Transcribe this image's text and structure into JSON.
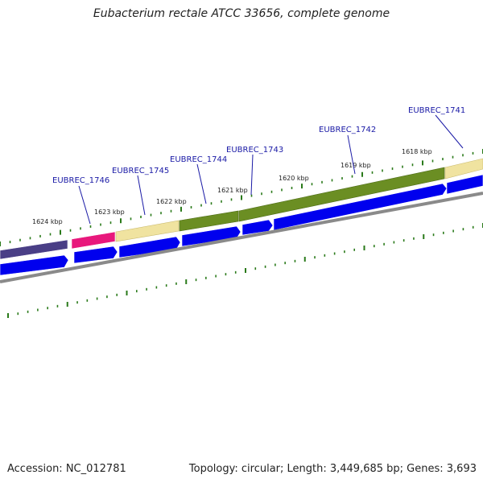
{
  "title": "Eubacterium rectale ATCC 33656, complete genome",
  "footer": {
    "accession": "Accession: NC_012781",
    "topology": "Topology: circular; Length: 3,449,685 bp; Genes: 3,693"
  },
  "colors": {
    "gene_navy": "#4a3f86",
    "gene_magenta": "#e8187c",
    "gene_khaki": "#f0e3a0",
    "gene_olive": "#6b8e23",
    "gene_olive_dark": "#4d6b16",
    "cds_blue": "#0000ee",
    "backbone_gray": "#8a8a8a",
    "tick_green": "#2a7a1a",
    "label_blue": "#1a1aa6"
  },
  "kbp_labels": [
    "1618 kbp",
    "1619 kbp",
    "1620 kbp",
    "1621 kbp",
    "1622 kbp",
    "1623 kbp",
    "1624 kbp"
  ],
  "gene_labels": [
    "EUBREC_1741",
    "EUBREC_1742",
    "EUBREC_1743",
    "EUBREC_1744",
    "EUBREC_1745",
    "EUBREC_1746"
  ]
}
